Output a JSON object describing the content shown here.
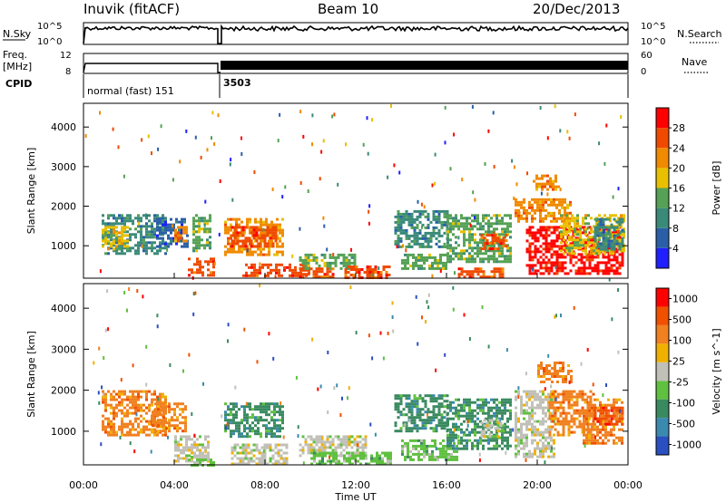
{
  "header": {
    "title": "Inuvik (fitACF)",
    "beam": "Beam 10",
    "date": "20/Dec/2013"
  },
  "top_panels": {
    "nsky_label": "N.Sky",
    "nsearch_label": "N.Search",
    "noise_ticks": [
      "10^5",
      "10^0"
    ],
    "freq_label_1": "Freq.",
    "freq_label_2": "[MHz]",
    "freq_ticks": [
      "12",
      "8"
    ],
    "nave_label": "Nave",
    "nave_ticks": [
      "60",
      "0"
    ],
    "cpid_label": "CPID",
    "cpid_segments": [
      "normal (fast) 151",
      "3503"
    ]
  },
  "chart_data": [
    {
      "type": "heatmap",
      "name": "power-panel",
      "ylabel": "Slant Range [km]",
      "yticks": [
        1000,
        2000,
        3000,
        4000
      ],
      "ylim": [
        180,
        4600
      ],
      "xlim": [
        0,
        24
      ],
      "colorbar_label": "Power [dB]",
      "colorbar_ticks": [
        "4",
        "8",
        "12",
        "16",
        "20",
        "24",
        "28"
      ],
      "colors": [
        "#2020ff",
        "#2a5fa8",
        "#3a8a7a",
        "#55a155",
        "#e8c000",
        "#f08a00",
        "#f04a00",
        "#ff0000"
      ],
      "regions": [
        {
          "x0": 0.8,
          "x1": 3.6,
          "y0": 800,
          "y1": 1800,
          "level": 2
        },
        {
          "x0": 0.8,
          "x1": 2.0,
          "y0": 900,
          "y1": 1500,
          "level": 4
        },
        {
          "x0": 3.2,
          "x1": 4.6,
          "y0": 1000,
          "y1": 1700,
          "level": 1
        },
        {
          "x0": 4.0,
          "x1": 4.6,
          "y0": 1100,
          "y1": 1500,
          "level": 5
        },
        {
          "x0": 4.6,
          "x1": 5.8,
          "y0": 250,
          "y1": 700,
          "level": 6
        },
        {
          "x0": 4.8,
          "x1": 5.6,
          "y0": 900,
          "y1": 1800,
          "level": 3
        },
        {
          "x0": 6.2,
          "x1": 8.8,
          "y0": 800,
          "y1": 1700,
          "level": 5
        },
        {
          "x0": 6.5,
          "x1": 8.5,
          "y0": 1000,
          "y1": 1500,
          "level": 6
        },
        {
          "x0": 7.0,
          "x1": 10.0,
          "y0": 250,
          "y1": 550,
          "level": 6
        },
        {
          "x0": 9.5,
          "x1": 12.0,
          "y0": 400,
          "y1": 800,
          "level": 3
        },
        {
          "x0": 9.5,
          "x1": 11.0,
          "y0": 200,
          "y1": 450,
          "level": 6
        },
        {
          "x0": 11.5,
          "x1": 13.5,
          "y0": 200,
          "y1": 500,
          "level": 6
        },
        {
          "x0": 13.7,
          "x1": 16.0,
          "y0": 1000,
          "y1": 1900,
          "level": 2
        },
        {
          "x0": 14.0,
          "x1": 16.0,
          "y0": 400,
          "y1": 800,
          "level": 3
        },
        {
          "x0": 16.0,
          "x1": 18.8,
          "y0": 600,
          "y1": 1800,
          "level": 3
        },
        {
          "x0": 17.5,
          "x1": 18.6,
          "y0": 900,
          "y1": 1300,
          "level": 6
        },
        {
          "x0": 16.5,
          "x1": 18.5,
          "y0": 200,
          "y1": 450,
          "level": 6
        },
        {
          "x0": 19.0,
          "x1": 21.5,
          "y0": 1600,
          "y1": 2200,
          "level": 5
        },
        {
          "x0": 19.8,
          "x1": 21.0,
          "y0": 2400,
          "y1": 2800,
          "level": 5
        },
        {
          "x0": 19.5,
          "x1": 23.8,
          "y0": 300,
          "y1": 1500,
          "level": 7
        },
        {
          "x0": 21.0,
          "x1": 23.8,
          "y0": 800,
          "y1": 1800,
          "level": 4
        },
        {
          "x0": 22.5,
          "x1": 23.8,
          "y0": 900,
          "y1": 1700,
          "level": 2
        }
      ]
    },
    {
      "type": "heatmap",
      "name": "velocity-panel",
      "ylabel": "Slant Range [km]",
      "yticks": [
        1000,
        2000,
        3000,
        4000
      ],
      "ylim": [
        180,
        4600
      ],
      "xlim": [
        0,
        24
      ],
      "colorbar_label": "Velocity [m s^-1]",
      "colorbar_ticks": [
        "1000",
        "500",
        "100",
        "25",
        "-25",
        "-100",
        "-500",
        "-1000"
      ],
      "colors": [
        "#2a4fc0",
        "#3a8ab0",
        "#3a8a60",
        "#60c040",
        "#c0c0b8",
        "#f0b000",
        "#f08020",
        "#f05000",
        "#ff0000"
      ],
      "regions": [
        {
          "x0": 0.8,
          "x1": 3.6,
          "y0": 900,
          "y1": 2000,
          "level": 6
        },
        {
          "x0": 3.0,
          "x1": 4.5,
          "y0": 1000,
          "y1": 1700,
          "level": 6
        },
        {
          "x0": 4.0,
          "x1": 5.5,
          "y0": 300,
          "y1": 900,
          "level": 4
        },
        {
          "x0": 4.6,
          "x1": 5.8,
          "y0": 200,
          "y1": 400,
          "level": 3
        },
        {
          "x0": 6.2,
          "x1": 8.8,
          "y0": 900,
          "y1": 1700,
          "level": 2
        },
        {
          "x0": 6.5,
          "x1": 9.0,
          "y0": 200,
          "y1": 700,
          "level": 4
        },
        {
          "x0": 9.5,
          "x1": 12.5,
          "y0": 400,
          "y1": 900,
          "level": 4
        },
        {
          "x0": 10.0,
          "x1": 13.5,
          "y0": 200,
          "y1": 500,
          "level": 3
        },
        {
          "x0": 13.7,
          "x1": 16.0,
          "y0": 1000,
          "y1": 1900,
          "level": 2
        },
        {
          "x0": 14.0,
          "x1": 16.5,
          "y0": 300,
          "y1": 800,
          "level": 3
        },
        {
          "x0": 16.0,
          "x1": 18.8,
          "y0": 600,
          "y1": 1800,
          "level": 2
        },
        {
          "x0": 17.5,
          "x1": 18.5,
          "y0": 900,
          "y1": 1300,
          "level": 4
        },
        {
          "x0": 19.0,
          "x1": 20.8,
          "y0": 400,
          "y1": 2000,
          "level": 4
        },
        {
          "x0": 20.0,
          "x1": 21.5,
          "y0": 2200,
          "y1": 2700,
          "level": 6
        },
        {
          "x0": 20.5,
          "x1": 22.5,
          "y0": 900,
          "y1": 2000,
          "level": 6
        },
        {
          "x0": 22.0,
          "x1": 23.8,
          "y0": 700,
          "y1": 1800,
          "level": 6
        },
        {
          "x0": 22.5,
          "x1": 23.8,
          "y0": 1200,
          "y1": 1600,
          "level": 7
        }
      ]
    }
  ],
  "x_axis": {
    "label": "Time UT",
    "ticks": [
      "00:00",
      "04:00",
      "08:00",
      "12:00",
      "16:00",
      "20:00",
      "00:00"
    ]
  }
}
